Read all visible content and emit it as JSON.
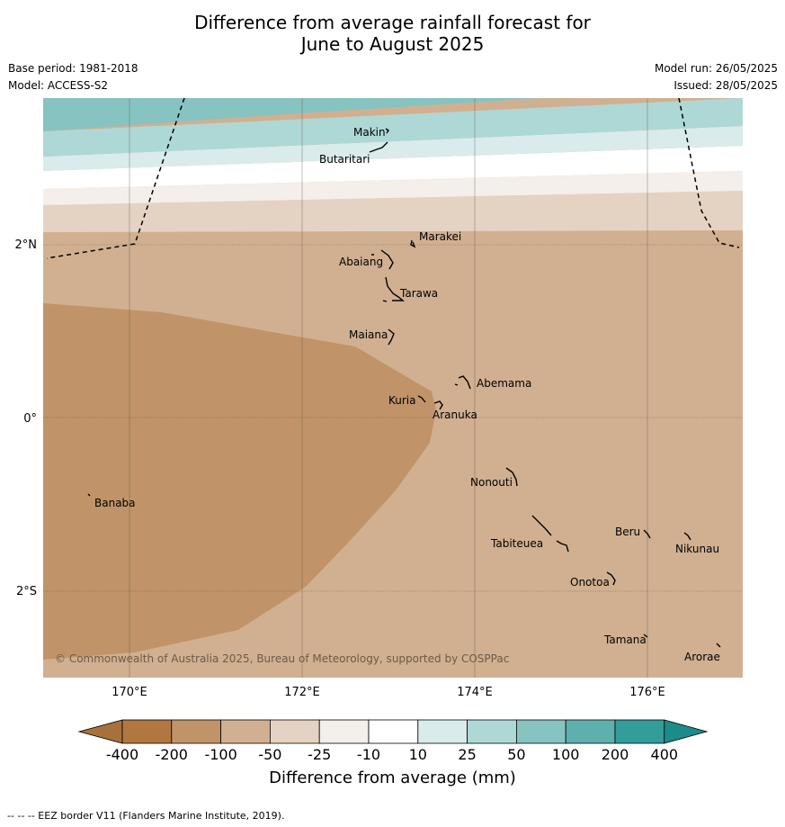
{
  "title_line1": "Difference from average rainfall forecast for",
  "title_line2": "June to August 2025",
  "base_period": "Base period: 1981-2018",
  "model": "Model: ACCESS-S2",
  "model_run": "Model run: 26/05/2025",
  "issued": "Issued: 28/05/2025",
  "copyright": "© Commonwealth of Australia 2025, Bureau of Meteorology, supported by COSPPac",
  "x_ticks": [
    "170°E",
    "172°E",
    "174°E",
    "176°E"
  ],
  "y_ticks": [
    "2°N",
    "0°",
    "2°S"
  ],
  "islands": [
    "Makin",
    "Butaritari",
    "Marakei",
    "Abaiang",
    "Tarawa",
    "Maiana",
    "Abemama",
    "Kuria",
    "Aranuka",
    "Nonouti",
    "Banaba",
    "Beru",
    "Nikunau",
    "Tabiteuea",
    "Onotoa",
    "Tamana",
    "Arorae"
  ],
  "colorbar": {
    "title": "Difference from average (mm)",
    "ticks": [
      "-400",
      "-200",
      "-100",
      "-50",
      "-25",
      "-10",
      "10",
      "25",
      "50",
      "100",
      "200",
      "400"
    ],
    "colors": [
      "#a8713c",
      "#b07840",
      "#c09468",
      "#d1b091",
      "#e4d3c3",
      "#f4efea",
      "#ffffff",
      "#d9ebeb",
      "#aed8d6",
      "#86c3c1",
      "#5eb0ae",
      "#339d9b",
      "#1d8b89"
    ]
  },
  "footer": "--  --  -- EEZ border V11 (Flanders Marine Institute, 2019)."
}
